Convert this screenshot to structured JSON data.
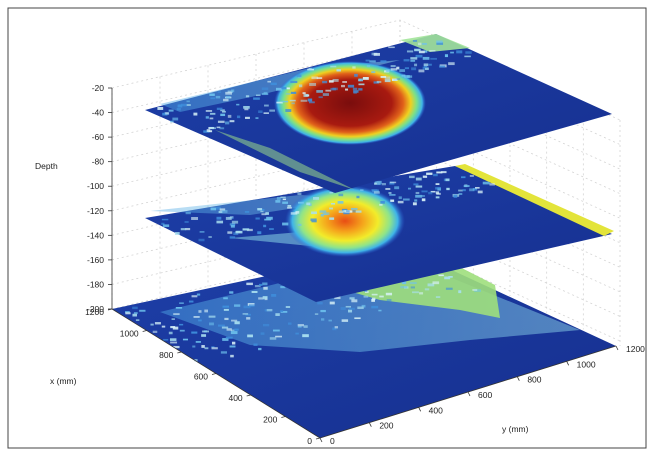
{
  "chart_data": {
    "type": "heatmap",
    "title": "",
    "zlabel": "Depth",
    "xlabel": "x (mm)",
    "ylabel": "y (mm)",
    "z_ticks": [
      "-20",
      "-40",
      "-60",
      "-80",
      "-100",
      "-120",
      "-140",
      "-160",
      "-180",
      "-200"
    ],
    "x_ticks": [
      "0",
      "200",
      "400",
      "600",
      "800",
      "1000",
      "1200"
    ],
    "y_ticks": [
      "0",
      "200",
      "400",
      "600",
      "800",
      "1000",
      "1200"
    ],
    "xlim": [
      0,
      1200
    ],
    "ylim": [
      0,
      1200
    ],
    "zlim": [
      -200,
      -20
    ],
    "grid": true,
    "colormap": "jet",
    "slices": [
      {
        "depth": -40,
        "hotspot": {
          "x": 600,
          "y": 600,
          "radius": 210,
          "peak": 1.0
        }
      },
      {
        "depth": -120,
        "hotspot": {
          "x": 600,
          "y": 600,
          "radius": 160,
          "peak": 0.85
        }
      },
      {
        "depth": -200,
        "hotspot": null
      }
    ]
  }
}
